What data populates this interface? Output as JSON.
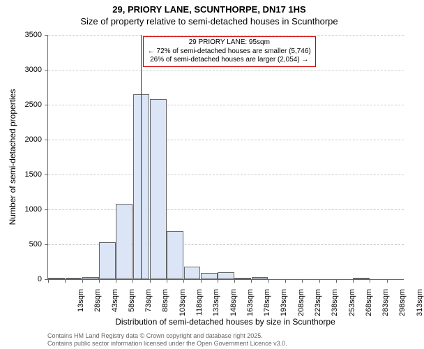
{
  "title_line1": "29, PRIORY LANE, SCUNTHORPE, DN17 1HS",
  "title_line2": "Size of property relative to semi-detached houses in Scunthorpe",
  "chart": {
    "type": "histogram",
    "yaxis_label": "Number of semi-detached properties",
    "xaxis_label": "Distribution of semi-detached houses by size in Scunthorpe",
    "ylim": [
      0,
      3500
    ],
    "ytick_step": 500,
    "yticks": [
      0,
      500,
      1000,
      1500,
      2000,
      2500,
      3000,
      3500
    ],
    "xticks": [
      "13sqm",
      "28sqm",
      "43sqm",
      "58sqm",
      "73sqm",
      "88sqm",
      "103sqm",
      "118sqm",
      "133sqm",
      "148sqm",
      "163sqm",
      "178sqm",
      "193sqm",
      "208sqm",
      "223sqm",
      "238sqm",
      "253sqm",
      "268sqm",
      "283sqm",
      "298sqm",
      "313sqm"
    ],
    "bar_values": [
      5,
      20,
      30,
      530,
      1080,
      2650,
      2580,
      690,
      180,
      90,
      100,
      20,
      30,
      0,
      0,
      0,
      0,
      0,
      10,
      0,
      0
    ],
    "bar_fill": "#dbe5f6",
    "bar_stroke": "#666666",
    "grid_color": "#cccccc",
    "background_color": "#ffffff",
    "bar_width": 0.98
  },
  "marker": {
    "position_sqm": 95,
    "color": "#d00000",
    "box_border": "#d00000",
    "line1": "29 PRIORY LANE: 95sqm",
    "line2": "← 72% of semi-detached houses are smaller (5,746)",
    "line3": "26% of semi-detached houses are larger (2,054) →"
  },
  "footer_line1": "Contains HM Land Registry data © Crown copyright and database right 2025.",
  "footer_line2": "Contains public sector information licensed under the Open Government Licence v3.0."
}
